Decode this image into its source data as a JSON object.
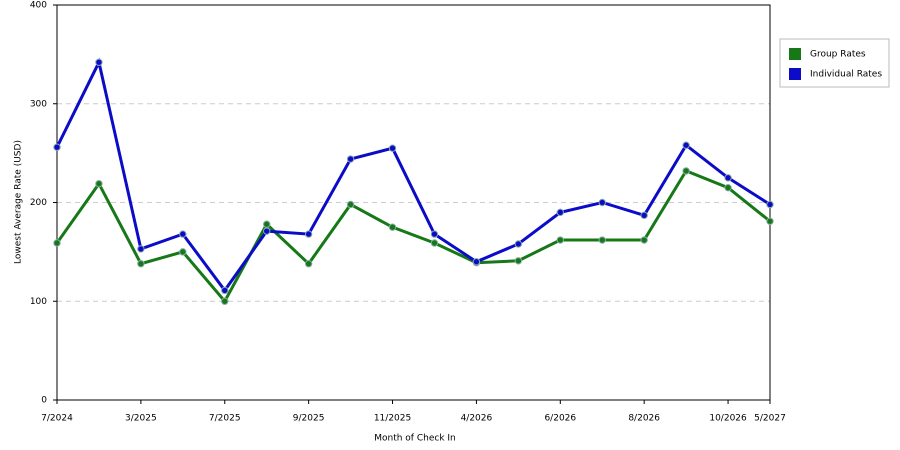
{
  "chart_data": {
    "type": "line",
    "x_label": "Month of Check In",
    "y_label": "Lowest Average Rate (USD)",
    "categories": [
      "7/2024",
      null,
      "3/2025",
      null,
      "7/2025",
      null,
      "9/2025",
      null,
      "11/2025",
      null,
      "4/2026",
      null,
      "6/2026",
      null,
      "8/2026",
      null,
      "10/2026",
      "5/2027"
    ],
    "series": [
      {
        "name": "Group Rates",
        "color": "#167816",
        "values": [
          159,
          219,
          138,
          150,
          100,
          178,
          138,
          198,
          175,
          159,
          139,
          141,
          162,
          162,
          162,
          232,
          215,
          181
        ]
      },
      {
        "name": "Individual Rates",
        "color": "#0c0cc8",
        "values": [
          256,
          342,
          153,
          168,
          111,
          171,
          168,
          244,
          255,
          168,
          140,
          158,
          190,
          200,
          187,
          258,
          225,
          198
        ]
      }
    ],
    "ylim": [
      0,
      400
    ],
    "yticks": [
      0,
      100,
      200,
      300,
      400
    ],
    "grid": true,
    "legend": "right"
  }
}
